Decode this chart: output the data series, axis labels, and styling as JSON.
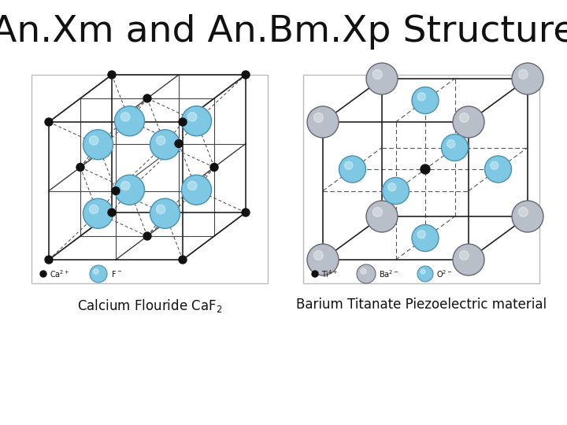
{
  "title": "An.Xm and An.Bm.Xp Structure",
  "title_fontsize": 34,
  "bg_color": "#ffffff",
  "atom_f_color": "#7ec8e3",
  "atom_f_edge": "#4a90b0",
  "atom_ca_color": "#111111",
  "atom_ba_color": "#b8bfc8",
  "atom_ba_edge": "#666677",
  "atom_o_color": "#7ec8e3",
  "atom_o_edge": "#4a90b0",
  "atom_ti_color": "#111111",
  "label_left": "Calcium Flouride CaF",
  "label_right": "Barium Titanate Piezoelectric material",
  "label_fontsize": 12
}
